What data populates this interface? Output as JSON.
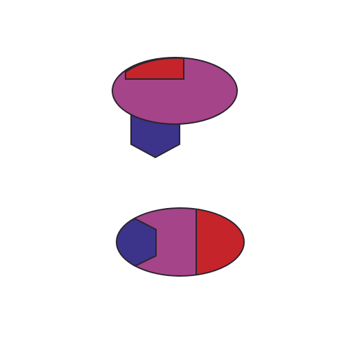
{
  "colors": {
    "background": "#ffffff",
    "purple": "#a6448a",
    "red": "#c4242a",
    "blue": "#3c348a",
    "outline": "#2b2430"
  },
  "figures": [
    {
      "name": "top-figure",
      "parts": [
        "purple-ellipse",
        "red-rectangle-cap",
        "blue-pentagon-stem"
      ]
    },
    {
      "name": "bottom-figure",
      "parts": [
        "purple-ellipse",
        "blue-hexagon-left",
        "red-half-ellipse-right"
      ]
    }
  ]
}
